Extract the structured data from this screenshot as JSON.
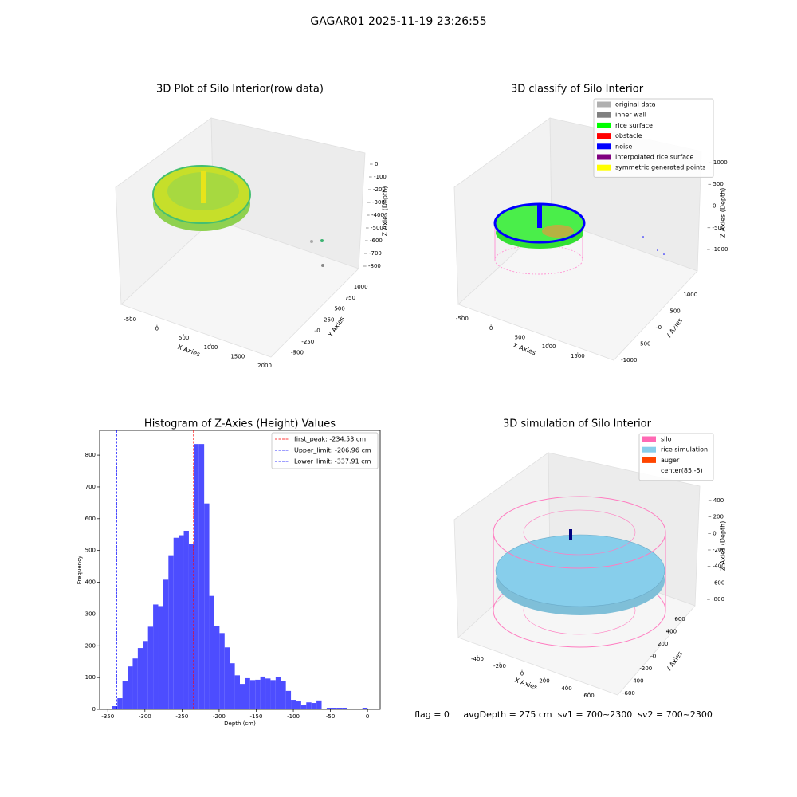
{
  "title": "GAGAR01 2025-11-19 23:26:55",
  "footer": "flag = 0     avgDepth = 275 cm  sv1 = 700~2300  sv2 = 700~2300",
  "chart_data": [
    {
      "type": "scatter3d",
      "title": "3D Plot of Silo Interior(row data)",
      "x_label": "X Axies",
      "y_label": "Y Axies",
      "z_label": "Z Axies (Depth)",
      "xlim": [
        -650,
        2100
      ],
      "xticks": [
        -500,
        0,
        500,
        1000,
        1500,
        2000
      ],
      "ylim": [
        -650,
        1100
      ],
      "yticks": [
        -500,
        -250,
        0,
        250,
        500,
        750,
        1000
      ],
      "zlim": [
        -850,
        50
      ],
      "zticks": [
        0,
        -100,
        -200,
        -300,
        -400,
        -500,
        -600,
        -700,
        -800
      ]
    },
    {
      "type": "scatter3d",
      "title": "3D classify of Silo Interior",
      "x_label": "X Axies",
      "y_label": "Y Axies",
      "z_label": "Z Axies (Depth)",
      "xlim": [
        -650,
        1800
      ],
      "xticks": [
        -500,
        0,
        500,
        1000,
        1500
      ],
      "ylim": [
        -1200,
        1200
      ],
      "yticks": [
        -1000,
        -500,
        0,
        500,
        1000
      ],
      "zlim": [
        -1100,
        1100
      ],
      "zticks": [
        1000,
        500,
        0,
        -500,
        -1000
      ],
      "legend_loc": "upper right",
      "legend": [
        {
          "name": "original data",
          "color": "#b0b0b0"
        },
        {
          "name": "inner wall",
          "color": "#808080"
        },
        {
          "name": "rice surface",
          "color": "#00ff00"
        },
        {
          "name": "obstacle",
          "color": "#ff0000"
        },
        {
          "name": "noise",
          "color": "#0000ff"
        },
        {
          "name": "interpolated rice surface",
          "color": "#800080"
        },
        {
          "name": "symmetric generated points",
          "color": "#ffff00"
        }
      ]
    },
    {
      "type": "histogram",
      "title": "Histogram of Z-Axies (Height) Values",
      "x_label": "Depth (cm)",
      "y_label": "Frequency",
      "color": "#4d4dff",
      "bins": [
        -344,
        -337.12,
        -330.24,
        -323.36,
        -316.48,
        -309.6,
        -302.72,
        -295.84,
        -288.96,
        -282.08,
        -275.2,
        -268.32,
        -261.44,
        -254.56,
        -247.68,
        -240.8,
        -233.92,
        -227.04,
        -220.16,
        -213.28,
        -206.4,
        -199.52,
        -192.64,
        -185.76,
        -178.88,
        -172,
        -165.12,
        -158.24,
        -151.36,
        -144.48,
        -137.6,
        -130.72,
        -123.84,
        -116.96,
        -110.08,
        -103.2,
        -96.32,
        -89.44,
        -82.56,
        -75.68,
        -68.8,
        -61.92,
        -55.04,
        -48.16,
        -41.28,
        -34.4,
        -27.52,
        -20.64,
        -13.76,
        -6.88,
        0
      ],
      "counts": [
        10,
        35,
        88,
        135,
        160,
        193,
        215,
        260,
        330,
        325,
        408,
        485,
        540,
        548,
        562,
        520,
        835,
        835,
        648,
        357,
        262,
        240,
        195,
        145,
        107,
        80,
        98,
        92,
        93,
        103,
        97,
        92,
        102,
        88,
        58,
        30,
        25,
        15,
        22,
        20,
        28,
        2,
        5,
        5,
        5,
        5,
        0,
        0,
        0,
        5
      ],
      "xlim": [
        -361,
        17
      ],
      "xticks": [
        -350,
        -300,
        -250,
        -200,
        -150,
        -100,
        -50,
        0
      ],
      "ylim": [
        0,
        878
      ],
      "yticks": [
        0,
        100,
        200,
        300,
        400,
        500,
        600,
        700,
        800
      ],
      "legend_loc": "upper right",
      "lines": [
        {
          "name": "first_peak: -234.53 cm",
          "value": -234.53,
          "color": "#ff0000"
        },
        {
          "name": "Upper_limit: -206.96 cm",
          "value": -206.96,
          "color": "#0000ff"
        },
        {
          "name": "Lower_limit: -337.91 cm",
          "value": -337.91,
          "color": "#0000ff"
        }
      ]
    },
    {
      "type": "scatter3d",
      "title": "3D simulation of Silo Interior",
      "x_label": "X Axies",
      "y_label": "Y Axies",
      "z_label": "Z Axies (Depth)",
      "xlim": [
        -600,
        750
      ],
      "xticks": [
        -400,
        -200,
        0,
        200,
        400,
        600
      ],
      "ylim": [
        -700,
        700
      ],
      "yticks": [
        -600,
        -400,
        -200,
        0,
        200,
        400,
        600
      ],
      "zlim": [
        -900,
        500
      ],
      "zticks": [
        400,
        200,
        0,
        -200,
        -400,
        -600,
        -800
      ],
      "legend_loc": "upper right",
      "legend": [
        {
          "name": "silo",
          "color": "#ff69b4"
        },
        {
          "name": "rice simulation",
          "color": "#87ceeb"
        },
        {
          "name": "auger",
          "color": "#ff4500"
        },
        {
          "name": "center(85,-5)",
          "color": "#ffffff"
        }
      ]
    }
  ]
}
